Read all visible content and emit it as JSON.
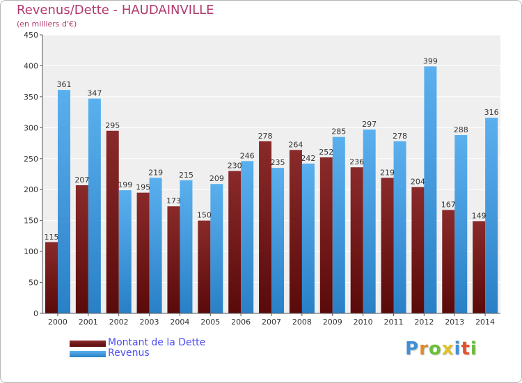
{
  "chart_data": {
    "type": "bar",
    "title": "Revenus/Dette - HAUDAINVILLE",
    "subtitle": "(en milliers d'€)",
    "xlabel": "",
    "ylabel": "",
    "ylim": [
      0,
      450
    ],
    "yticks": [
      0,
      50,
      100,
      150,
      200,
      250,
      300,
      350,
      400,
      450
    ],
    "grid": true,
    "legend_position": "bottom-left",
    "categories": [
      "2000",
      "2001",
      "2002",
      "2003",
      "2004",
      "2005",
      "2006",
      "2007",
      "2008",
      "2009",
      "2010",
      "2011",
      "2012",
      "2013",
      "2014"
    ],
    "series": [
      {
        "name": "Montant de la Dette",
        "color": "#7a1a1a",
        "values": [
          115,
          207,
          295,
          195,
          173,
          150,
          230,
          278,
          264,
          252,
          236,
          219,
          204,
          167,
          149
        ]
      },
      {
        "name": "Revenus",
        "color": "#4aa3e6",
        "values": [
          361,
          347,
          199,
          219,
          215,
          209,
          246,
          235,
          242,
          285,
          297,
          278,
          399,
          288,
          316
        ]
      }
    ]
  },
  "legend": {
    "dette_label": "Montant de la Dette",
    "revenus_label": "Revenus"
  },
  "logo": {
    "letters": [
      "P",
      "r",
      "o",
      "x",
      "i",
      "t",
      "i"
    ],
    "colors": [
      "#3f8fd8",
      "#e08a2a",
      "#6bbf3a",
      "#e0c12a",
      "#3f8fd8",
      "#e0532a",
      "#6bbf3a"
    ]
  }
}
